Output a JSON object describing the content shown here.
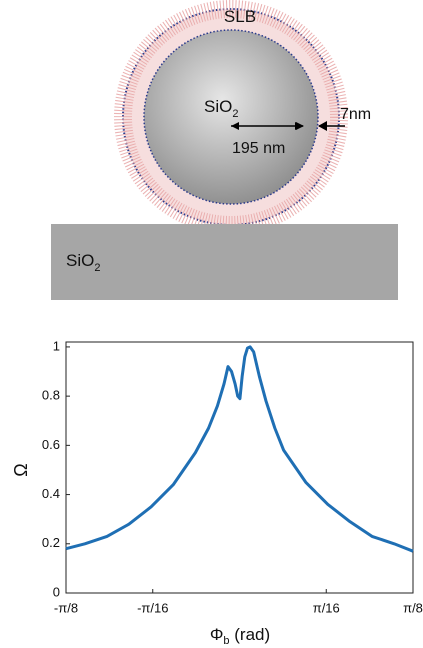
{
  "diagram": {
    "shell_label": "SLB",
    "core_label": "SiO",
    "core_label_sub": "2",
    "radius_label": "195 nm",
    "thickness_label": "7nm",
    "substrate_label": "SiO",
    "substrate_label_sub": "2"
  },
  "chart_data": {
    "type": "line",
    "x_label": "Φ",
    "x_label_sub": "b",
    "x_label_unit": " (rad)",
    "y_label": "Ω",
    "xlim": [
      -0.3927,
      0.3927
    ],
    "ylim": [
      0,
      1.02
    ],
    "xticks": [
      {
        "value": -0.3927,
        "label": "-π/8"
      },
      {
        "value": -0.19635,
        "label": "-π/16"
      },
      {
        "value": 0.19635,
        "label": "π/16"
      },
      {
        "value": 0.3927,
        "label": "π/8"
      }
    ],
    "yticks": [
      0,
      0.2,
      0.4,
      0.6,
      0.8,
      1
    ],
    "series": [
      {
        "name": "Ω",
        "color": "#1f6fb4",
        "x": [
          -0.3927,
          -0.35,
          -0.3,
          -0.25,
          -0.2,
          -0.15,
          -0.1,
          -0.07,
          -0.05,
          -0.035,
          -0.026,
          -0.018,
          -0.01,
          -0.004,
          0.001,
          0.006,
          0.012,
          0.018,
          0.024,
          0.032,
          0.045,
          0.06,
          0.08,
          0.1,
          0.15,
          0.2,
          0.25,
          0.3,
          0.35,
          0.3927
        ],
        "values": [
          0.18,
          0.2,
          0.23,
          0.28,
          0.35,
          0.44,
          0.57,
          0.67,
          0.76,
          0.85,
          0.92,
          0.9,
          0.85,
          0.8,
          0.79,
          0.88,
          0.96,
          0.995,
          1.0,
          0.98,
          0.88,
          0.78,
          0.67,
          0.58,
          0.45,
          0.36,
          0.29,
          0.23,
          0.2,
          0.17
        ]
      }
    ]
  }
}
